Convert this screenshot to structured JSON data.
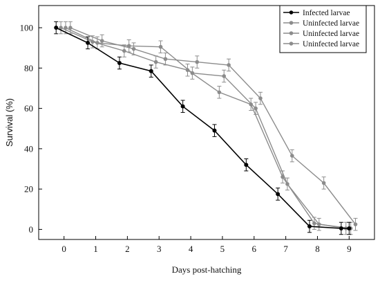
{
  "chart_data": {
    "type": "line",
    "title": "",
    "xlabel": "Days post-hatching",
    "ylabel": "Survival (%)",
    "xlim": [
      -0.8,
      9.8
    ],
    "ylim": [
      -5,
      111
    ],
    "x_ticks": [
      0,
      1,
      2,
      3,
      4,
      5,
      6,
      7,
      8,
      9
    ],
    "x_tick_labels": [
      "0",
      "1",
      "2",
      "3",
      "4",
      "5",
      "6",
      "7",
      "8",
      "9"
    ],
    "y_ticks": [
      0,
      20,
      40,
      60,
      80,
      100
    ],
    "y_tick_labels": [
      "0",
      "20",
      "40",
      "60",
      "80",
      "100"
    ],
    "grid": false,
    "legend_position": "top-right",
    "series": [
      {
        "name": "Infected larvae",
        "color": "#000000",
        "x": [
          -0.25,
          0.75,
          1.75,
          2.75,
          3.75,
          4.75,
          5.75,
          6.75,
          7.75,
          8.75,
          9.0
        ],
        "y": [
          100,
          92.5,
          82.5,
          78.5,
          61,
          49,
          32,
          17.5,
          1.5,
          0.5,
          0.5
        ],
        "err": [
          3,
          3,
          3,
          3,
          3,
          3,
          3,
          3,
          3,
          3,
          3
        ]
      },
      {
        "name": "Uninfected larvae",
        "color": "#8c8c8c",
        "x": [
          -0.1,
          0.9,
          1.9,
          2.9,
          3.9,
          4.9,
          5.9,
          6.9,
          7.9,
          8.9
        ],
        "y": [
          100,
          93,
          88.5,
          83,
          79,
          68,
          62,
          26,
          3,
          0.5
        ],
        "err": [
          3,
          3,
          3,
          3,
          3,
          3,
          3,
          3,
          3,
          3
        ]
      },
      {
        "name": "Uninfected larvae",
        "color": "#8c8c8c",
        "x": [
          0.05,
          1.05,
          2.05,
          3.05,
          4.05,
          5.05,
          6.05,
          7.05,
          8.05,
          9.05
        ],
        "y": [
          100,
          92.5,
          91,
          90.5,
          77.5,
          76,
          60,
          22.5,
          2.5,
          0.5
        ],
        "err": [
          3,
          3,
          3,
          3,
          3,
          3,
          3,
          3,
          3,
          3
        ]
      },
      {
        "name": "Uninfected larvae",
        "color": "#8c8c8c",
        "x": [
          0.2,
          1.2,
          2.2,
          3.2,
          4.2,
          5.2,
          6.2,
          7.2,
          8.2,
          9.2
        ],
        "y": [
          100,
          93.5,
          89.5,
          84.5,
          83,
          81.5,
          65,
          36.5,
          23,
          2.5
        ],
        "err": [
          3,
          3,
          3,
          3,
          3,
          3,
          3,
          3,
          3,
          3
        ]
      }
    ]
  }
}
